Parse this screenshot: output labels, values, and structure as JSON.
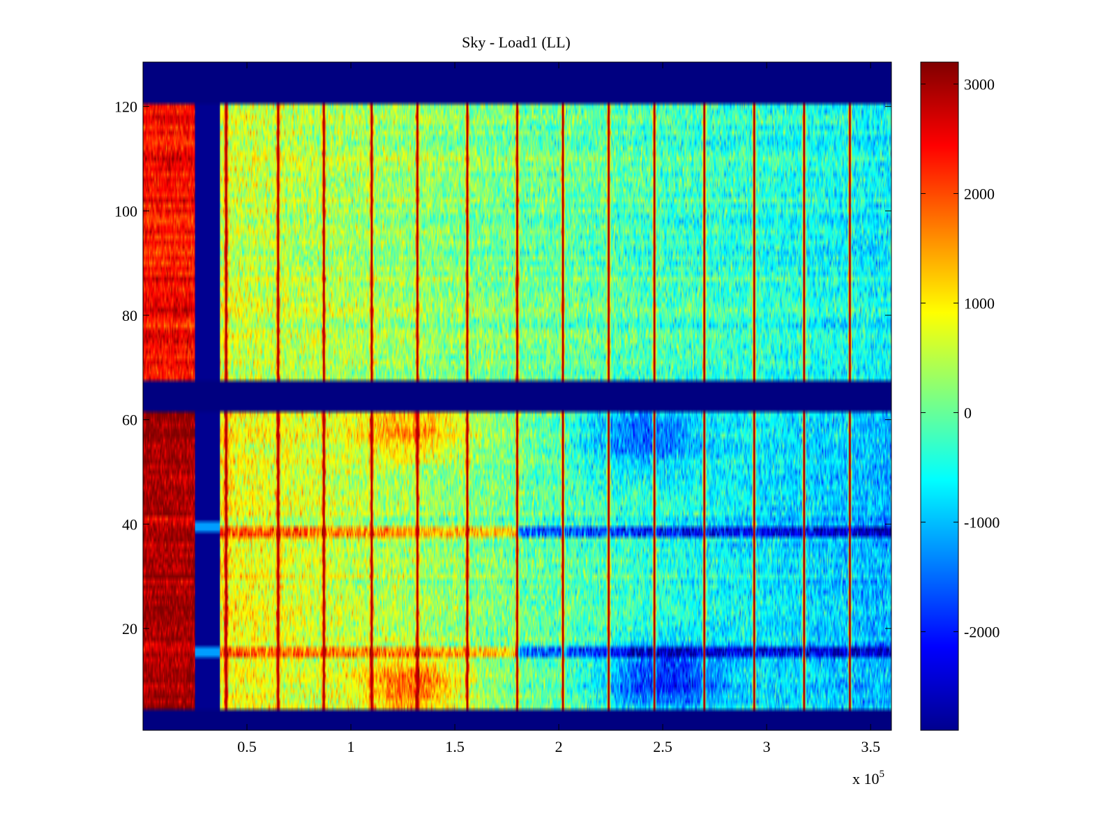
{
  "chart_data": {
    "type": "heatmap",
    "title": "Sky - Load1 (LL)",
    "xlabel": "",
    "ylabel": "",
    "x_multiplier_label": "x 10",
    "x_multiplier_exponent": "5",
    "xlim": [
      0,
      3.6
    ],
    "ylim": [
      1,
      128
    ],
    "x_ticks": [
      0.5,
      1,
      1.5,
      2,
      2.5,
      3,
      3.5
    ],
    "x_tick_labels": [
      "0.5",
      "1",
      "1.5",
      "2",
      "2.5",
      "3",
      "3.5"
    ],
    "y_ticks": [
      20,
      40,
      60,
      80,
      100,
      120
    ],
    "y_tick_labels": [
      "20",
      "40",
      "60",
      "80",
      "100",
      "120"
    ],
    "colormap": "jet",
    "clim": [
      -2900,
      3200
    ],
    "colorbar_ticks": [
      3000,
      2000,
      1000,
      0,
      -1000,
      -2000
    ],
    "colorbar_tick_labels": [
      "3000",
      "2000",
      "1000",
      "0",
      "-1000",
      "-2000"
    ],
    "masked_row_ranges": [
      [
        1,
        4
      ],
      [
        62,
        67
      ],
      [
        121,
        128
      ]
    ],
    "column_bands": [
      {
        "x_range": [
          0,
          0.25
        ],
        "value": 2900,
        "description": "hot load region"
      },
      {
        "x_range": [
          0.25,
          0.37
        ],
        "value": -2800,
        "description": "cold gap"
      }
    ],
    "vertical_spike_x": [
      0.4,
      0.65,
      0.87,
      1.1,
      1.32,
      1.56,
      1.8,
      2.02,
      2.24,
      2.46,
      2.7,
      2.94,
      3.18,
      3.4
    ],
    "notable_rows": [
      {
        "y": 39,
        "description": "high values left of 1.8, low values right"
      },
      {
        "y": 15,
        "description": "high values left of 1.8, low values right"
      }
    ],
    "grid": false,
    "legend": "none"
  }
}
